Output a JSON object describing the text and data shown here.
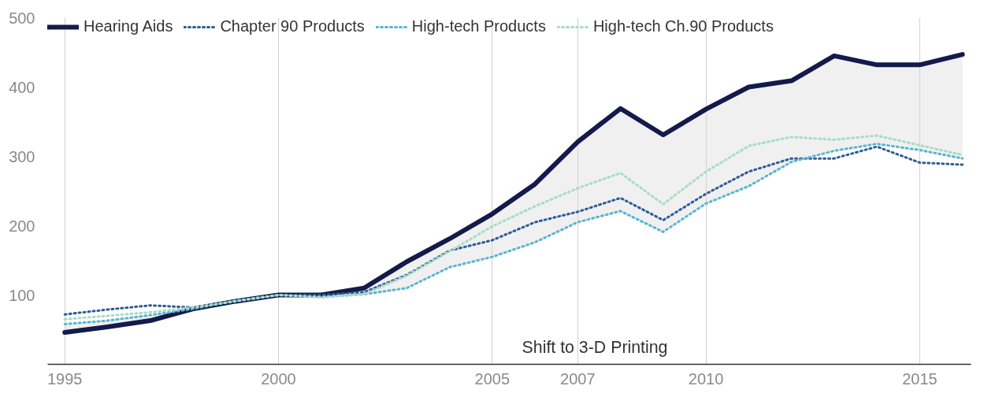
{
  "chart_data": {
    "type": "line",
    "x": [
      1995,
      1996,
      1997,
      1998,
      1999,
      2000,
      2001,
      2002,
      2003,
      2004,
      2005,
      2006,
      2007,
      2008,
      2009,
      2010,
      2011,
      2012,
      2013,
      2014,
      2015,
      2016
    ],
    "series": [
      {
        "name": "Hearing Aids",
        "color": "#141a4a",
        "line_style": "solid",
        "values": [
          46,
          54,
          63,
          80,
          91,
          100,
          100,
          110,
          148,
          181,
          217,
          260,
          321,
          369,
          331,
          368,
          400,
          409,
          445,
          432,
          432,
          447
        ],
        "upper": [
          46,
          54,
          63,
          80,
          91,
          100,
          100,
          110,
          148,
          181,
          217,
          260,
          321,
          369,
          331,
          368,
          400,
          409,
          445,
          432,
          432,
          447
        ],
        "lower": [
          58,
          63,
          71,
          80,
          92,
          100,
          97,
          101,
          110,
          140,
          155,
          176,
          205,
          221,
          191,
          232,
          257,
          292,
          308,
          318,
          309,
          297
        ]
      },
      {
        "name": "Chapter 90 Products",
        "color": "#2f5b9a",
        "line_style": "dotted",
        "values": [
          72,
          79,
          85,
          82,
          91,
          100,
          100,
          104,
          129,
          164,
          179,
          205,
          220,
          240,
          208,
          246,
          278,
          297,
          297,
          314,
          291,
          288
        ]
      },
      {
        "name": "High-tech Products",
        "color": "#5bb5d0",
        "line_style": "dotted",
        "values": [
          58,
          63,
          71,
          80,
          92,
          100,
          97,
          101,
          110,
          140,
          155,
          176,
          205,
          221,
          191,
          232,
          257,
          292,
          308,
          318,
          309,
          297
        ]
      },
      {
        "name": "High-tech Ch.90 Products",
        "color": "#a8dcc8",
        "line_style": "dotted",
        "values": [
          65,
          70,
          75,
          82,
          91,
          100,
          97,
          101,
          128,
          163,
          199,
          228,
          254,
          276,
          231,
          278,
          315,
          328,
          324,
          330,
          316,
          302
        ]
      }
    ],
    "xlim": [
      1994.6,
      2016.2
    ],
    "ylim": [
      0,
      500
    ],
    "xticks": [
      1995,
      2000,
      2005,
      2007,
      2010,
      2015
    ],
    "yticks": [
      100,
      200,
      300,
      400,
      500
    ],
    "grid": "x",
    "legend": "top left",
    "marker": "none",
    "annotations": [
      "Shift to 3-D Printing"
    ]
  }
}
